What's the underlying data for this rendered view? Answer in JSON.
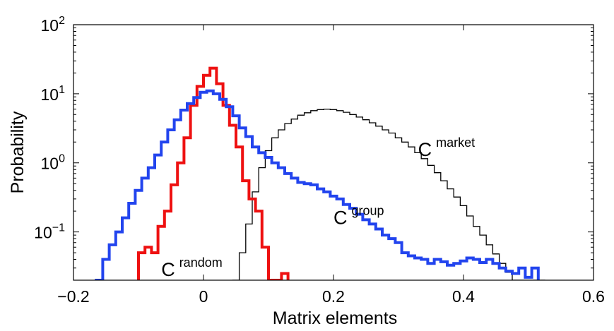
{
  "chart_data": {
    "type": "line",
    "xlabel": "Matrix elements",
    "ylabel": "Probability",
    "xlim": [
      -0.2,
      0.6
    ],
    "ylim": [
      0.02,
      100
    ],
    "yscale": "log",
    "x_ticks": [
      {
        "value": -0.2,
        "label": "−0.2"
      },
      {
        "value": 0,
        "label": "0"
      },
      {
        "value": 0.2,
        "label": "0.2"
      },
      {
        "value": 0.4,
        "label": "0.4"
      },
      {
        "value": 0.6,
        "label": "0.6"
      }
    ],
    "y_ticks": [
      {
        "value": 0.1,
        "base": "10",
        "exp": "−1"
      },
      {
        "value": 1,
        "base": "10",
        "exp": "0"
      },
      {
        "value": 10,
        "base": "10",
        "exp": "1"
      },
      {
        "value": 100,
        "base": "10",
        "exp": "2"
      }
    ],
    "grid": false,
    "series": [
      {
        "key": "random",
        "color": "#ee1111",
        "step_x": [
          -0.1,
          -0.09,
          -0.08,
          -0.07,
          -0.06,
          -0.05,
          -0.04,
          -0.03,
          -0.02,
          -0.01,
          0,
          0.01,
          0.02,
          0.03,
          0.04,
          0.05,
          0.06,
          0.07,
          0.08,
          0.09,
          0.1,
          0.11,
          0.12,
          0.13
        ],
        "values": [
          0.05,
          0.06,
          0.05,
          0.12,
          0.2,
          0.48,
          1.0,
          2.3,
          6.8,
          12.8,
          18.5,
          23.5,
          14.0,
          6.8,
          3.5,
          1.7,
          0.55,
          0.3,
          0.2,
          0.06,
          0.02,
          0.02,
          0.025
        ]
      },
      {
        "key": "group",
        "color": "#2244ee",
        "step_x": [
          -0.165,
          -0.155,
          -0.145,
          -0.135,
          -0.125,
          -0.115,
          -0.105,
          -0.095,
          -0.085,
          -0.075,
          -0.065,
          -0.055,
          -0.045,
          -0.035,
          -0.025,
          -0.015,
          -0.005,
          0.005,
          0.015,
          0.025,
          0.035,
          0.045,
          0.055,
          0.065,
          0.075,
          0.085,
          0.095,
          0.105,
          0.115,
          0.125,
          0.135,
          0.145,
          0.155,
          0.165,
          0.175,
          0.185,
          0.195,
          0.205,
          0.215,
          0.225,
          0.235,
          0.245,
          0.255,
          0.265,
          0.275,
          0.285,
          0.295,
          0.305,
          0.315,
          0.325,
          0.335,
          0.345,
          0.355,
          0.365,
          0.375,
          0.385,
          0.395,
          0.405,
          0.415,
          0.425,
          0.435,
          0.445,
          0.455,
          0.465,
          0.475,
          0.485,
          0.495,
          0.505,
          0.515
        ],
        "values": [
          0.02,
          0.04,
          0.065,
          0.1,
          0.16,
          0.26,
          0.4,
          0.6,
          0.85,
          1.3,
          2.0,
          3.0,
          4.2,
          5.8,
          7.2,
          8.8,
          10.5,
          11.0,
          10.0,
          8.3,
          6.5,
          4.8,
          3.2,
          2.4,
          1.7,
          1.4,
          1.2,
          1.0,
          0.85,
          0.7,
          0.6,
          0.52,
          0.5,
          0.48,
          0.42,
          0.38,
          0.33,
          0.3,
          0.25,
          0.22,
          0.18,
          0.15,
          0.13,
          0.11,
          0.09,
          0.08,
          0.07,
          0.05,
          0.045,
          0.042,
          0.04,
          0.035,
          0.04,
          0.037,
          0.033,
          0.035,
          0.038,
          0.042,
          0.04,
          0.036,
          0.04,
          0.035,
          0.03,
          0.027,
          0.025,
          0.03,
          0.022,
          0.03,
          0.02
        ]
      },
      {
        "key": "market",
        "color": "#000000",
        "step_x": [
          0.045,
          0.055,
          0.065,
          0.075,
          0.085,
          0.095,
          0.105,
          0.115,
          0.125,
          0.135,
          0.145,
          0.155,
          0.165,
          0.175,
          0.185,
          0.195,
          0.205,
          0.215,
          0.225,
          0.235,
          0.245,
          0.255,
          0.265,
          0.275,
          0.285,
          0.295,
          0.305,
          0.315,
          0.325,
          0.335,
          0.345,
          0.355,
          0.365,
          0.375,
          0.385,
          0.395,
          0.405,
          0.415,
          0.425,
          0.435,
          0.445,
          0.455,
          0.465,
          0.475,
          0.485,
          0.495,
          0.505,
          0.515,
          0.525
        ],
        "values": [
          0.02,
          0.05,
          0.13,
          0.38,
          0.85,
          1.5,
          2.3,
          3.0,
          3.7,
          4.3,
          4.9,
          5.3,
          5.7,
          5.9,
          6.0,
          5.9,
          5.7,
          5.4,
          5.0,
          4.6,
          4.2,
          3.8,
          3.4,
          3.0,
          2.7,
          2.3,
          2.0,
          1.7,
          1.4,
          1.15,
          0.92,
          0.72,
          0.55,
          0.42,
          0.32,
          0.24,
          0.17,
          0.12,
          0.09,
          0.065,
          0.048,
          0.035,
          0.026,
          0.02,
          0.02,
          0.02,
          0.02,
          0.02
        ]
      }
    ],
    "annotations": [
      {
        "key": "random",
        "main": "C",
        "sup": "random",
        "x": -0.065,
        "y": 0.023
      },
      {
        "key": "group",
        "main": "C",
        "sup": "group",
        "x": 0.2,
        "y": 0.13
      },
      {
        "key": "market",
        "main": "C",
        "sup": "market",
        "x": 0.33,
        "y": 1.25
      }
    ]
  }
}
